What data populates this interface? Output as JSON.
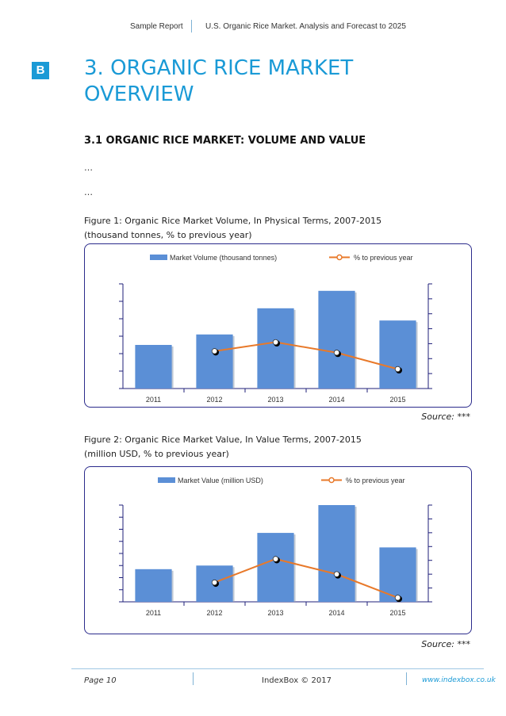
{
  "header": {
    "left": "Sample Report",
    "right": "U.S. Organic Rice Market. Analysis and Forecast to 2025"
  },
  "logo": "B",
  "title_line1": "3. ORGANIC RICE MARKET",
  "title_line2": "OVERVIEW",
  "subtitle": "3.1 ORGANIC RICE MARKET: VOLUME AND VALUE",
  "ellipsis1": "…",
  "ellipsis2": "…",
  "figure1": {
    "caption_line1": "Figure 1: Organic Rice Market Volume, In Physical Terms, 2007-2015",
    "caption_line2": "(thousand tonnes, % to previous year)",
    "source": "Source: ***"
  },
  "figure2": {
    "caption_line1": "Figure 2: Organic Rice Market Value, In Value Terms, 2007-2015",
    "caption_line2": "(million USD, % to previous year)",
    "source": "Source: ***"
  },
  "chart_data": [
    {
      "type": "bar",
      "categories": [
        "2011",
        "2012",
        "2013",
        "2014",
        "2015"
      ],
      "series": [
        {
          "name": "Market Volume (thousand tonnes)",
          "type": "bar",
          "axis": "left",
          "values": [
            25,
            31,
            46,
            56,
            39
          ]
        },
        {
          "name": "% to previous year",
          "type": "line",
          "axis": "right",
          "values": [
            null,
            25,
            31,
            24,
            13
          ]
        }
      ],
      "ylim": [
        0,
        60
      ],
      "y2lim": [
        0,
        70
      ],
      "legend": "top",
      "colors": {
        "bar": "#5b8fd6",
        "line": "#e8792a"
      }
    },
    {
      "type": "bar",
      "categories": [
        "2011",
        "2012",
        "2013",
        "2014",
        "2015"
      ],
      "series": [
        {
          "name": "Market Value (million USD)",
          "type": "bar",
          "axis": "left",
          "values": [
            27,
            30,
            57,
            80,
            45
          ]
        },
        {
          "name": "% to previous year",
          "type": "line",
          "axis": "right",
          "values": [
            null,
            14,
            31,
            20,
            3
          ]
        }
      ],
      "ylim": [
        0,
        80
      ],
      "y2lim": [
        0,
        70
      ],
      "legend": "top",
      "colors": {
        "bar": "#5b8fd6",
        "line": "#e8792a"
      }
    }
  ],
  "footer": {
    "page": "Page 10",
    "copyright": "IndexBox © 2017",
    "url": "www.indexbox.co.uk"
  }
}
